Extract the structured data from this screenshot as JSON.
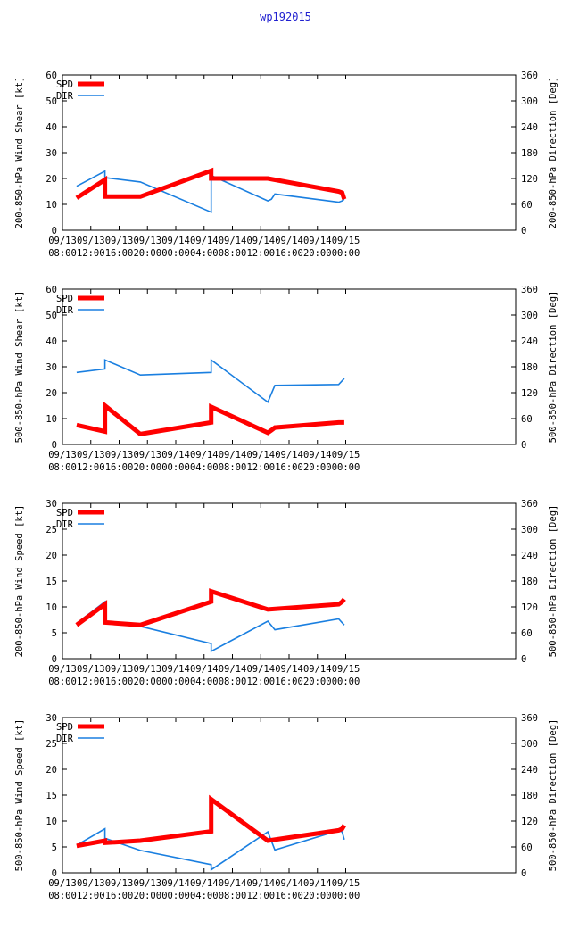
{
  "title": "wp192015",
  "colors": {
    "spd": "#ff0000",
    "dir": "#1a7fe0",
    "axis": "#000000",
    "title": "#2020d0"
  },
  "x_axis": {
    "range_hours": [
      0,
      64
    ],
    "ticks": [
      {
        "h": 0,
        "l1": "09/13",
        "l2": "08:00"
      },
      {
        "h": 4,
        "l1": "09/13",
        "l2": "12:00"
      },
      {
        "h": 8,
        "l1": "09/13",
        "l2": "16:00"
      },
      {
        "h": 12,
        "l1": "09/13",
        "l2": "20:00"
      },
      {
        "h": 16,
        "l1": "09/14",
        "l2": "00:00"
      },
      {
        "h": 20,
        "l1": "09/14",
        "l2": "04:00"
      },
      {
        "h": 24,
        "l1": "09/14",
        "l2": "08:00"
      },
      {
        "h": 28,
        "l1": "09/14",
        "l2": "12:00"
      },
      {
        "h": 32,
        "l1": "09/14",
        "l2": "16:00"
      },
      {
        "h": 36,
        "l1": "09/14",
        "l2": "20:00"
      },
      {
        "h": 40,
        "l1": "09/15",
        "l2": "00:00"
      }
    ]
  },
  "chart_data": [
    {
      "type": "line",
      "ylabel": "200-850-hPa Wind Shear [kt]",
      "y2label": "200-850-hPa Direction [Deg]",
      "ylim": [
        0,
        60
      ],
      "yticks": [
        0,
        10,
        20,
        30,
        40,
        50,
        60
      ],
      "y2lim": [
        0,
        360
      ],
      "y2ticks": [
        0,
        60,
        120,
        180,
        240,
        300,
        360
      ],
      "series": [
        {
          "name": "SPD",
          "axis": "left",
          "x": [
            2,
            6,
            6,
            11,
            21,
            21,
            29,
            39,
            39.5,
            39.8
          ],
          "values": [
            12.5,
            19.5,
            13,
            13,
            23,
            20,
            20,
            15,
            14.5,
            12
          ]
        },
        {
          "name": "DIR",
          "axis": "right",
          "x": [
            2,
            6,
            6,
            11,
            21,
            21,
            29,
            29.5,
            30,
            39,
            39.5,
            39.8
          ],
          "values": [
            102,
            137,
            122,
            112,
            42,
            127,
            68,
            72,
            84,
            65,
            68,
            72
          ]
        }
      ]
    },
    {
      "type": "line",
      "ylabel": "500-850-hPa Wind Shear [kt]",
      "y2label": "500-850-hPa Direction [Deg]",
      "ylim": [
        0,
        60
      ],
      "yticks": [
        0,
        10,
        20,
        30,
        40,
        50,
        60
      ],
      "y2lim": [
        0,
        360
      ],
      "y2ticks": [
        0,
        60,
        120,
        180,
        240,
        300,
        360
      ],
      "series": [
        {
          "name": "SPD",
          "axis": "left",
          "x": [
            2,
            6,
            6,
            11,
            21,
            21,
            29,
            29.5,
            30,
            39,
            39.8
          ],
          "values": [
            7.5,
            5,
            15,
            4,
            8.5,
            14.5,
            4.5,
            5.5,
            6.5,
            8.5,
            8.5
          ]
        },
        {
          "name": "DIR",
          "axis": "right",
          "x": [
            2,
            6,
            6,
            11,
            21,
            21,
            29,
            30,
            39,
            39.8
          ],
          "values": [
            167,
            175,
            196,
            161,
            167,
            196,
            98,
            137,
            139,
            153
          ]
        }
      ]
    },
    {
      "type": "line",
      "ylabel": "200-850-hPa Wind Speed [kt]",
      "y2label": "500-850-hPa Direction [Deg]",
      "ylim": [
        0,
        30
      ],
      "yticks": [
        0,
        5,
        10,
        15,
        20,
        25,
        30
      ],
      "y2lim": [
        0,
        360
      ],
      "y2ticks": [
        0,
        60,
        120,
        180,
        240,
        300,
        360
      ],
      "series": [
        {
          "name": "SPD",
          "axis": "left",
          "x": [
            2,
            6,
            6,
            11,
            21,
            21,
            29,
            39,
            39.5,
            39.8
          ],
          "values": [
            6.5,
            10.5,
            7,
            6.5,
            11,
            13,
            9.5,
            10.5,
            11,
            11.5
          ]
        },
        {
          "name": "DIR",
          "axis": "right",
          "x": [
            2,
            6,
            6,
            11,
            21,
            21,
            29,
            30,
            39,
            39.8
          ],
          "values": [
            82,
            132,
            87,
            75,
            35,
            17,
            87,
            67,
            92,
            78
          ]
        }
      ]
    },
    {
      "type": "line",
      "ylabel": "500-850-hPa Wind Speed [kt]",
      "y2label": "500-850-hPa Direction [Deg]",
      "ylim": [
        0,
        30
      ],
      "yticks": [
        0,
        5,
        10,
        15,
        20,
        25,
        30
      ],
      "y2lim": [
        0,
        360
      ],
      "y2ticks": [
        0,
        60,
        120,
        180,
        240,
        300,
        360
      ],
      "series": [
        {
          "name": "SPD",
          "axis": "left",
          "x": [
            2,
            6,
            6,
            11,
            21,
            21,
            29,
            39,
            39.5,
            39.8
          ],
          "values": [
            5.2,
            6.2,
            5.8,
            6.2,
            8,
            14.2,
            6.2,
            8.2,
            8.5,
            9.2
          ]
        },
        {
          "name": "DIR",
          "axis": "right",
          "x": [
            2,
            6,
            6,
            11,
            21,
            21,
            29,
            30,
            39,
            39.5,
            39.8
          ],
          "values": [
            64,
            102,
            80,
            52,
            19,
            7,
            95,
            53,
            98,
            95,
            77
          ]
        }
      ]
    }
  ]
}
